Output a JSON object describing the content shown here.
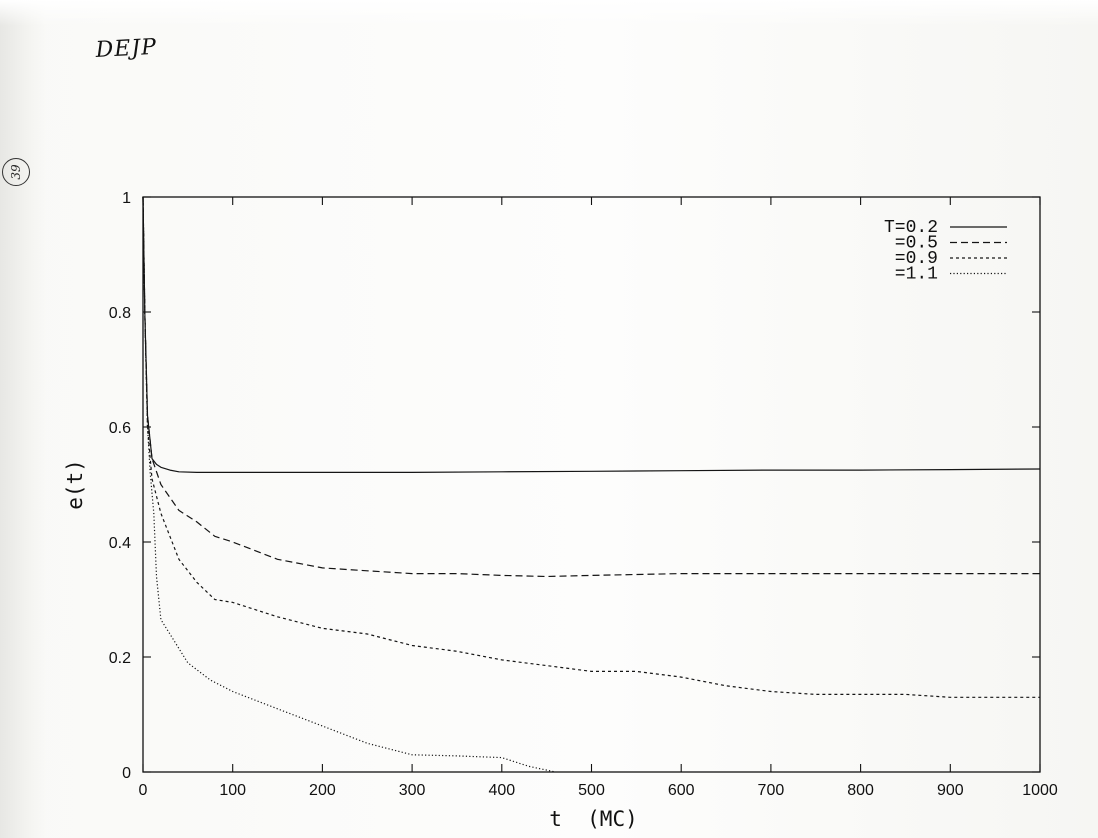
{
  "annotations": {
    "handwritten_label": "DEJP",
    "page_number": "39"
  },
  "chart_data": {
    "type": "line",
    "title": "",
    "xlabel": "t  (MC)",
    "ylabel": "e(t)",
    "xlim": [
      0,
      1000
    ],
    "ylim": [
      0,
      1
    ],
    "x_ticks": [
      0,
      100,
      200,
      300,
      400,
      500,
      600,
      700,
      800,
      900,
      1000
    ],
    "y_ticks": [
      0,
      0.2,
      0.4,
      0.6,
      0.8,
      1
    ],
    "x_tick_labels": [
      "0",
      "100",
      "200",
      "300",
      "400",
      "500",
      "600",
      "700",
      "800",
      "900",
      "1000"
    ],
    "y_tick_labels": [
      "0",
      "0.2",
      "0.4",
      "0.6",
      "0.8",
      "1"
    ],
    "grid": false,
    "legend_position": "top-right",
    "series": [
      {
        "name": "T=0.2",
        "line_style": "solid",
        "x": [
          0,
          2,
          5,
          10,
          15,
          20,
          30,
          40,
          60,
          100,
          200,
          300,
          400,
          500,
          600,
          700,
          800,
          900,
          1000
        ],
        "y": [
          1.0,
          0.8,
          0.62,
          0.545,
          0.535,
          0.53,
          0.525,
          0.522,
          0.521,
          0.521,
          0.521,
          0.521,
          0.522,
          0.523,
          0.524,
          0.525,
          0.525,
          0.526,
          0.527
        ]
      },
      {
        "name": "=0.5",
        "line_style": "dashed",
        "x": [
          0,
          2,
          5,
          10,
          20,
          40,
          60,
          80,
          100,
          150,
          200,
          250,
          300,
          350,
          400,
          450,
          500,
          600,
          700,
          800,
          900,
          1000
        ],
        "y": [
          1.0,
          0.8,
          0.62,
          0.545,
          0.5,
          0.455,
          0.435,
          0.41,
          0.4,
          0.37,
          0.355,
          0.35,
          0.345,
          0.345,
          0.342,
          0.34,
          0.342,
          0.345,
          0.345,
          0.345,
          0.345,
          0.345
        ]
      },
      {
        "name": "=0.9",
        "line_style": "dotted-dense",
        "x": [
          0,
          2,
          5,
          10,
          20,
          30,
          40,
          60,
          80,
          100,
          150,
          200,
          250,
          300,
          350,
          400,
          450,
          500,
          550,
          600,
          650,
          700,
          750,
          800,
          850,
          900,
          950,
          1000
        ],
        "y": [
          1.0,
          0.8,
          0.6,
          0.51,
          0.45,
          0.41,
          0.37,
          0.33,
          0.3,
          0.295,
          0.27,
          0.25,
          0.24,
          0.22,
          0.21,
          0.195,
          0.185,
          0.175,
          0.175,
          0.165,
          0.15,
          0.14,
          0.135,
          0.135,
          0.135,
          0.13,
          0.13,
          0.13
        ]
      },
      {
        "name": "=1.1",
        "line_style": "dotted",
        "x": [
          0,
          2,
          5,
          8,
          12,
          15,
          20,
          30,
          50,
          75,
          100,
          150,
          200,
          250,
          300,
          350,
          400,
          430,
          460
        ],
        "y": [
          1.0,
          0.8,
          0.6,
          0.52,
          0.45,
          0.34,
          0.265,
          0.24,
          0.19,
          0.16,
          0.14,
          0.11,
          0.08,
          0.05,
          0.03,
          0.028,
          0.025,
          0.01,
          0.0
        ]
      }
    ]
  }
}
